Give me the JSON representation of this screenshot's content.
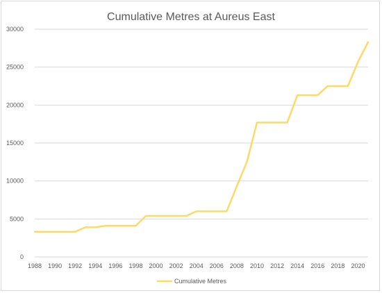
{
  "chart_data": {
    "type": "line",
    "title": "Cumulative Metres at Aureus East",
    "xlabel": "",
    "ylabel": "",
    "ylim": [
      0,
      30000
    ],
    "xlim": [
      1988,
      2021
    ],
    "y_ticks": [
      0,
      5000,
      10000,
      15000,
      20000,
      25000,
      30000
    ],
    "x_ticks": [
      1988,
      1990,
      1992,
      1994,
      1996,
      1998,
      2000,
      2002,
      2004,
      2006,
      2008,
      2010,
      2012,
      2014,
      2016,
      2018,
      2020
    ],
    "grid": "horizontal",
    "legend_position": "bottom",
    "line_color": "#FFD966",
    "series": [
      {
        "name": "Cumulative Metres",
        "x": [
          1988,
          1989,
          1990,
          1991,
          1992,
          1993,
          1994,
          1995,
          1996,
          1997,
          1998,
          1999,
          2000,
          2001,
          2002,
          2003,
          2004,
          2005,
          2006,
          2007,
          2008,
          2009,
          2010,
          2011,
          2012,
          2013,
          2014,
          2015,
          2016,
          2017,
          2018,
          2019,
          2020,
          2021
        ],
        "values": [
          3300,
          3300,
          3300,
          3300,
          3300,
          3900,
          3900,
          4100,
          4100,
          4100,
          4100,
          5400,
          5400,
          5400,
          5400,
          5400,
          6000,
          6000,
          6000,
          6000,
          9300,
          12500,
          17700,
          17700,
          17700,
          17700,
          21300,
          21300,
          21300,
          22500,
          22500,
          22500,
          25700,
          28300
        ]
      }
    ]
  }
}
